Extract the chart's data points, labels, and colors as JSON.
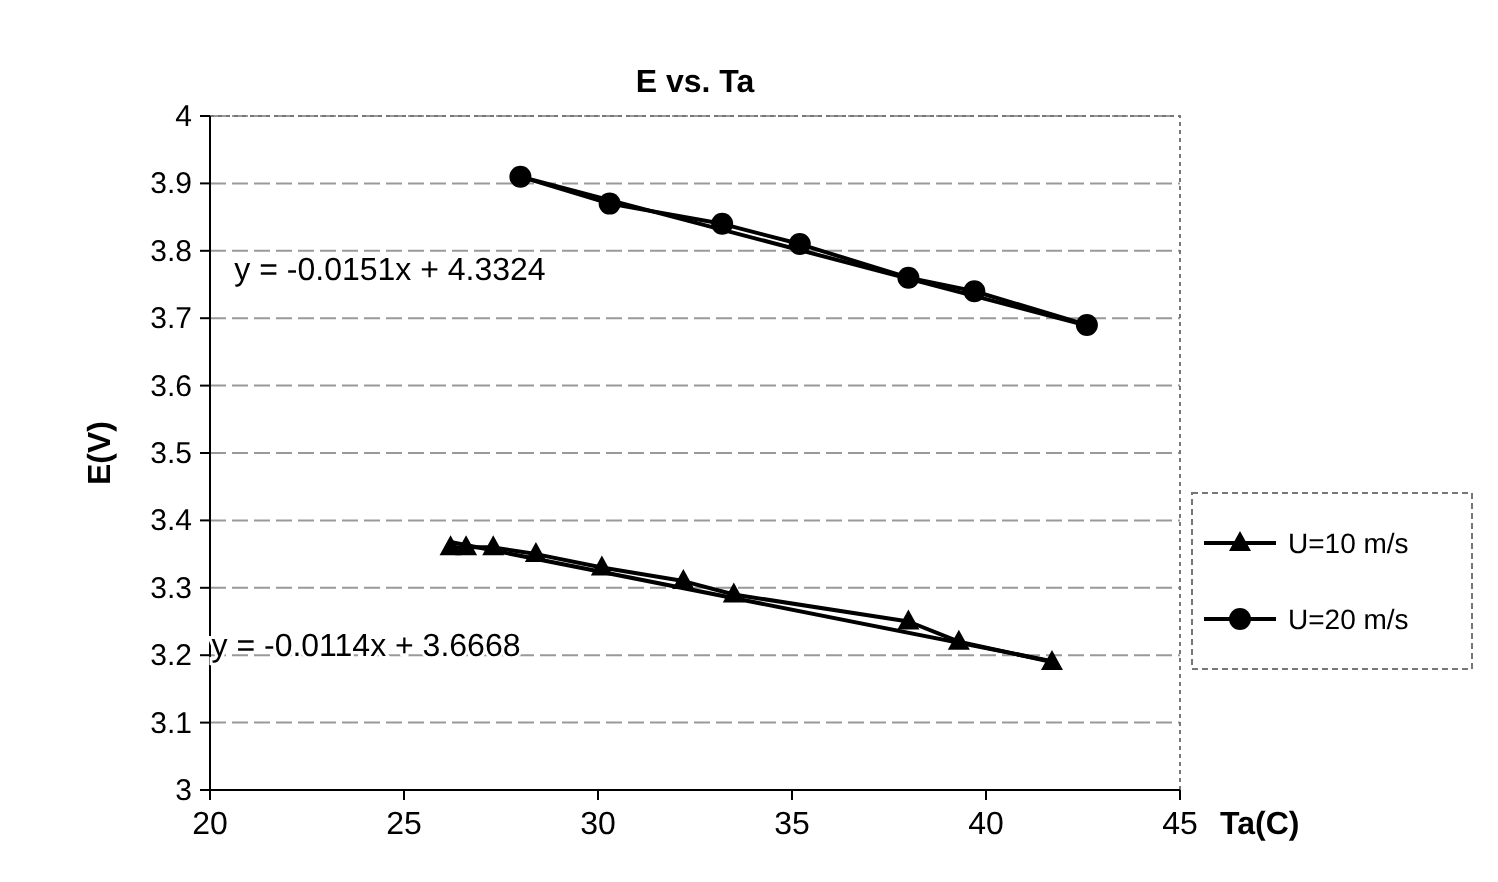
{
  "chart_data": {
    "type": "line",
    "title": "E vs. Ta",
    "xlabel": "Ta(C)",
    "ylabel": "E(V)",
    "xlim": [
      20,
      45
    ],
    "xticks": [
      20,
      25,
      30,
      35,
      40,
      45
    ],
    "ylim": [
      3,
      4
    ],
    "yticks": [
      3,
      3.1,
      3.2,
      3.3,
      3.4,
      3.5,
      3.6,
      3.7,
      3.8,
      3.9,
      4
    ],
    "grid": "y",
    "legend": "right",
    "line_style": "solid",
    "series": [
      {
        "name": "U=10 m/s",
        "color": "#000000",
        "marker": "triangle",
        "x": [
          26.2,
          26.6,
          27.3,
          28.4,
          30.1,
          32.2,
          33.5,
          38.0,
          39.3,
          41.7
        ],
        "values": [
          3.36,
          3.36,
          3.36,
          3.35,
          3.33,
          3.31,
          3.29,
          3.25,
          3.22,
          3.19
        ]
      },
      {
        "name": "U=20 m/s",
        "color": "#000000",
        "marker": "circle",
        "x": [
          28.0,
          30.3,
          33.2,
          35.2,
          38.0,
          39.7,
          42.6
        ],
        "values": [
          3.91,
          3.87,
          3.84,
          3.81,
          3.76,
          3.74,
          3.69
        ]
      },
      {
        "type": "line",
        "color": "#000000",
        "x": [
          26.2,
          41.7
        ],
        "values": [
          3.368,
          3.191
        ]
      },
      {
        "type": "line",
        "color": "#000000",
        "x": [
          28.0,
          42.6
        ],
        "values": [
          3.91,
          3.689
        ]
      }
    ],
    "annotations": [
      "y = -0.0151x + 4.3324",
      "y = -0.0114x + 3.6668"
    ]
  }
}
